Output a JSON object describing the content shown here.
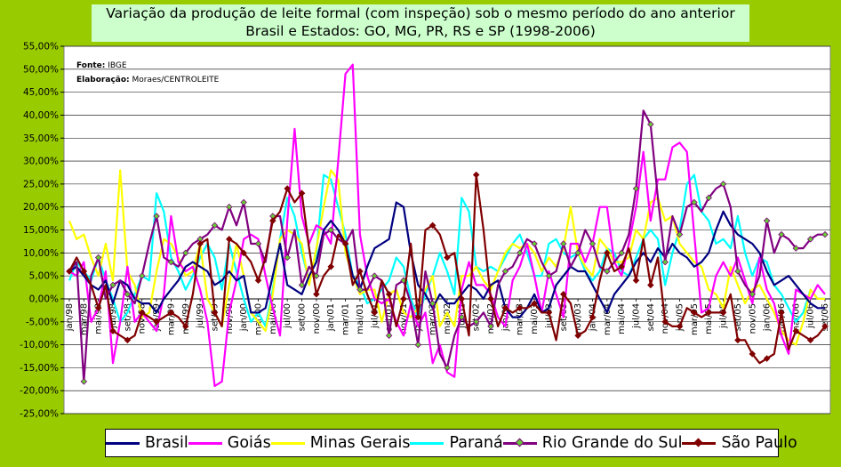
{
  "title_line1": "Variação da produção de leite formal (com inspeção) sob o mesmo período do ano anterior",
  "title_line2": "Brasil e Estados: GO, MG, PR, RS e SP (1998-2006)",
  "note_source": "IBGE",
  "note_source_label": "Fonte:",
  "note_author_label": "Elaboração:",
  "note_author": "Moraes/CENTROLEITE",
  "colors": {
    "Brasil": "#000080",
    "Goiás": "#ff00ff",
    "Minas Gerais": "#ffff00",
    "Paraná": "#00ffff",
    "Rio Grande do Sul": "#800080",
    "São Paulo": "#800000",
    "rs_marker": "#66cc33"
  },
  "chart_data": {
    "type": "line",
    "ylim": [
      -0.25,
      0.55
    ],
    "y_tick_step": 0.05,
    "y_tick_labels": [
      "55,00%",
      "50,00%",
      "45,00%",
      "40,00%",
      "35,00%",
      "30,00%",
      "25,00%",
      "20,00%",
      "15,00%",
      "10,00%",
      "5,00%",
      "0,00%",
      "-5,00%",
      "-10,00%",
      "-15,00%",
      "-20,00%",
      "-25,00%"
    ],
    "x_tick_labels": [
      "jan/98",
      "mar/98",
      "mai/98",
      "jul/98",
      "set/98",
      "nov/98",
      "jan/99",
      "mar/99",
      "mai/99",
      "jul/99",
      "set/99",
      "nov/99",
      "jan/00",
      "mar/00",
      "mai/00",
      "jul/00",
      "set/00",
      "nov/00",
      "jan/01",
      "mar/01",
      "mai/01",
      "jul/01",
      "set/01",
      "nov/01",
      "jan/02",
      "mar/02",
      "mai/02",
      "jul/02",
      "set/02",
      "nov/02",
      "jan/03",
      "mar/03",
      "mai/03",
      "jul/03",
      "set/03",
      "nov/03",
      "jan/04",
      "mar/04",
      "mai/04",
      "jul/04",
      "set/04",
      "nov/04",
      "jan/05",
      "mar/05",
      "mai/05",
      "jul/05",
      "set/05",
      "nov/05",
      "jan/06",
      "mar/06",
      "mai/06",
      "jul/06",
      "set/06"
    ],
    "n_points": 105,
    "series": [
      {
        "name": "Brasil",
        "values": [
          0.06,
          0.07,
          0.05,
          0.03,
          0.02,
          0.04,
          -0.01,
          0.04,
          0.03,
          0.0,
          -0.01,
          -0.01,
          -0.03,
          0.0,
          0.02,
          0.04,
          0.07,
          0.08,
          0.07,
          0.06,
          0.03,
          0.04,
          0.06,
          0.04,
          0.05,
          -0.03,
          -0.03,
          -0.02,
          0.05,
          0.12,
          0.03,
          0.02,
          0.01,
          0.05,
          0.08,
          0.15,
          0.17,
          0.15,
          0.12,
          0.05,
          0.02,
          0.07,
          0.11,
          0.12,
          0.13,
          0.21,
          0.2,
          0.1,
          0.03,
          0.01,
          -0.02,
          0.01,
          -0.01,
          -0.01,
          0.01,
          0.03,
          0.02,
          0.0,
          0.03,
          0.04,
          -0.02,
          -0.04,
          -0.04,
          -0.02,
          0.01,
          -0.03,
          -0.02,
          0.03,
          0.05,
          0.07,
          0.06,
          0.06,
          0.03,
          0.0,
          -0.03,
          0.01,
          0.03,
          0.05,
          0.08,
          0.1,
          0.08,
          0.11,
          0.09,
          0.12,
          0.1,
          0.09,
          0.07,
          0.08,
          0.1,
          0.15,
          0.19,
          0.16,
          0.14,
          0.13,
          0.12,
          0.1,
          0.06,
          0.03,
          0.04,
          0.05,
          0.03,
          0.01,
          -0.01,
          -0.02,
          -0.02
        ]
      },
      {
        "name": "Goiás",
        "values": [
          0.06,
          0.05,
          0.08,
          -0.05,
          -0.02,
          0.06,
          -0.14,
          -0.05,
          0.07,
          -0.05,
          -0.03,
          -0.05,
          -0.07,
          0.01,
          0.18,
          0.08,
          0.06,
          0.07,
          0.02,
          -0.05,
          -0.19,
          -0.18,
          -0.03,
          0.04,
          0.13,
          0.14,
          0.13,
          0.05,
          -0.02,
          -0.08,
          0.17,
          0.37,
          0.18,
          0.12,
          0.16,
          0.15,
          0.12,
          0.3,
          0.49,
          0.51,
          0.14,
          0.05,
          0.0,
          -0.01,
          0.0,
          -0.05,
          -0.08,
          -0.01,
          -0.06,
          -0.03,
          -0.14,
          -0.1,
          -0.16,
          -0.17,
          0.02,
          0.08,
          0.03,
          0.03,
          0.01,
          -0.04,
          -0.06,
          0.04,
          0.07,
          0.12,
          0.05,
          -0.03,
          0.06,
          0.01,
          -0.04,
          0.12,
          0.12,
          0.08,
          0.12,
          0.2,
          0.2,
          0.08,
          0.05,
          0.12,
          0.2,
          0.32,
          0.17,
          0.26,
          0.26,
          0.33,
          0.34,
          0.32,
          0.14,
          -0.03,
          -0.02,
          0.05,
          0.08,
          0.05,
          0.09,
          0.04,
          -0.01,
          0.09,
          0.02,
          -0.01,
          -0.08,
          -0.12,
          0.02,
          0.01,
          0.0,
          0.03,
          0.01
        ]
      },
      {
        "name": "Minas Gerais",
        "values": [
          0.17,
          0.13,
          0.14,
          0.09,
          0.05,
          0.12,
          0.04,
          0.28,
          0.06,
          0.03,
          -0.04,
          -0.03,
          0.06,
          0.13,
          0.12,
          0.09,
          0.05,
          0.06,
          0.12,
          0.0,
          -0.03,
          -0.06,
          0.03,
          0.12,
          0.05,
          -0.03,
          -0.05,
          -0.07,
          0.01,
          0.13,
          0.15,
          0.14,
          0.12,
          0.03,
          0.11,
          0.2,
          0.28,
          0.26,
          0.1,
          0.05,
          0.01,
          0.02,
          0.02,
          -0.05,
          0.01,
          0.02,
          -0.03,
          -0.04,
          -0.02,
          0.02,
          0.05,
          -0.06,
          -0.03,
          -0.06,
          0.05,
          0.05,
          0.07,
          0.04,
          0.02,
          0.06,
          0.1,
          0.12,
          0.11,
          0.12,
          0.1,
          0.06,
          0.09,
          0.07,
          0.11,
          0.2,
          0.1,
          0.07,
          0.05,
          0.13,
          0.11,
          0.08,
          0.08,
          0.09,
          0.15,
          0.13,
          0.21,
          0.22,
          0.17,
          0.18,
          0.12,
          0.1,
          0.08,
          0.07,
          0.02,
          0.01,
          -0.02,
          0.07,
          0.03,
          -0.01,
          0.02,
          0.03,
          0.0,
          -0.03,
          -0.07,
          -0.09,
          -0.1,
          -0.05,
          0.02,
          0.0,
          0.0
        ]
      },
      {
        "name": "Paraná",
        "values": [
          0.04,
          0.08,
          0.06,
          0.04,
          0.09,
          0.04,
          0.0,
          -0.05,
          -0.03,
          0.01,
          0.05,
          0.04,
          0.23,
          0.19,
          0.09,
          0.06,
          0.02,
          0.05,
          0.09,
          0.12,
          0.09,
          0.02,
          0.12,
          0.06,
          0.0,
          -0.05,
          -0.03,
          -0.06,
          0.02,
          0.13,
          0.22,
          0.18,
          0.1,
          0.04,
          0.1,
          0.27,
          0.26,
          0.2,
          0.14,
          0.05,
          0.03,
          -0.01,
          0.0,
          0.02,
          0.04,
          0.09,
          0.07,
          0.0,
          -0.04,
          0.01,
          0.05,
          0.1,
          0.06,
          0.01,
          0.22,
          0.19,
          0.07,
          0.06,
          0.07,
          0.06,
          0.09,
          0.12,
          0.14,
          0.1,
          0.05,
          0.05,
          0.12,
          0.13,
          0.1,
          0.09,
          0.1,
          0.06,
          0.04,
          0.06,
          0.11,
          0.1,
          0.06,
          0.05,
          0.09,
          0.13,
          0.15,
          0.13,
          0.03,
          0.1,
          0.15,
          0.25,
          0.27,
          0.19,
          0.17,
          0.12,
          0.13,
          0.11,
          0.18,
          0.1,
          0.05,
          0.09,
          0.08,
          0.03,
          0.01,
          -0.02,
          -0.05,
          -0.03,
          0.02,
          0.0,
          0.0
        ]
      },
      {
        "name": "Rio Grande do Sul",
        "values": [
          0.06,
          0.08,
          -0.18,
          0.05,
          0.09,
          0.0,
          0.03,
          0.04,
          0.01,
          -0.01,
          0.05,
          0.12,
          0.18,
          0.09,
          0.08,
          0.07,
          0.1,
          0.12,
          0.13,
          0.14,
          0.16,
          0.15,
          0.2,
          0.16,
          0.21,
          0.12,
          0.12,
          0.08,
          0.18,
          0.18,
          0.09,
          0.15,
          0.03,
          0.07,
          0.05,
          0.14,
          0.15,
          0.13,
          0.12,
          0.15,
          0.02,
          0.02,
          0.05,
          0.04,
          -0.08,
          0.03,
          0.04,
          -0.01,
          -0.1,
          0.06,
          -0.01,
          -0.12,
          -0.15,
          -0.08,
          -0.04,
          -0.06,
          -0.05,
          -0.03,
          -0.06,
          0.03,
          0.06,
          0.07,
          0.1,
          0.13,
          0.12,
          0.08,
          0.05,
          0.06,
          0.12,
          0.07,
          0.1,
          0.15,
          0.12,
          0.07,
          0.06,
          0.08,
          0.1,
          0.14,
          0.24,
          0.41,
          0.38,
          0.22,
          0.08,
          0.18,
          0.14,
          0.2,
          0.21,
          0.19,
          0.22,
          0.24,
          0.25,
          0.2,
          0.06,
          0.03,
          0.01,
          0.05,
          0.17,
          0.1,
          0.14,
          0.13,
          0.11,
          0.11,
          0.13,
          0.14,
          0.14
        ]
      },
      {
        "name": "São Paulo",
        "values": [
          0.06,
          0.09,
          0.06,
          0.03,
          -0.02,
          0.03,
          -0.07,
          -0.08,
          -0.09,
          -0.08,
          -0.03,
          -0.04,
          -0.05,
          -0.04,
          -0.03,
          -0.04,
          -0.06,
          0.01,
          0.12,
          0.13,
          -0.03,
          -0.06,
          0.13,
          0.12,
          0.1,
          0.08,
          0.04,
          0.09,
          0.17,
          0.19,
          0.24,
          0.21,
          0.23,
          0.11,
          0.01,
          0.05,
          0.07,
          0.14,
          0.12,
          0.03,
          0.06,
          0.01,
          -0.03,
          0.04,
          0.01,
          -0.06,
          0.0,
          0.12,
          -0.04,
          0.15,
          0.16,
          0.14,
          0.09,
          0.1,
          0.0,
          -0.08,
          0.27,
          0.15,
          0.0,
          -0.06,
          -0.02,
          -0.03,
          -0.02,
          -0.02,
          -0.01,
          -0.03,
          -0.03,
          -0.09,
          0.01,
          -0.01,
          -0.08,
          -0.07,
          -0.04,
          0.04,
          0.1,
          0.06,
          0.07,
          0.11,
          0.04,
          0.13,
          0.03,
          0.09,
          -0.05,
          -0.06,
          -0.06,
          -0.02,
          -0.03,
          -0.04,
          -0.03,
          -0.03,
          -0.03,
          0.01,
          -0.09,
          -0.09,
          -0.12,
          -0.14,
          -0.13,
          -0.12,
          -0.03,
          -0.11,
          -0.07,
          -0.08,
          -0.09,
          -0.08,
          -0.06
        ]
      }
    ]
  }
}
